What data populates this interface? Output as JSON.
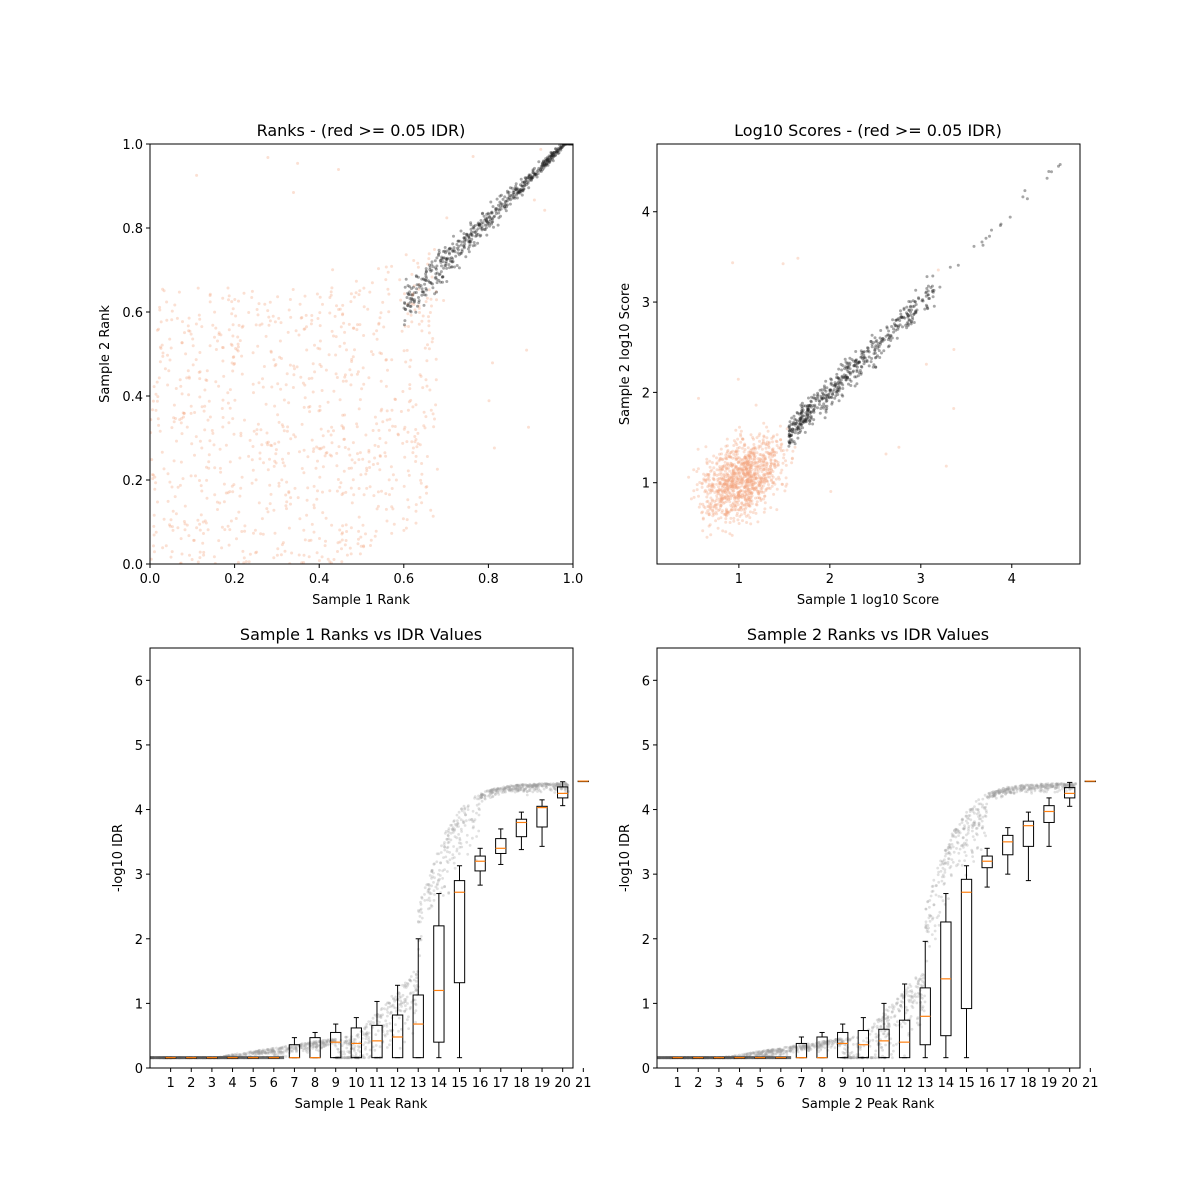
{
  "colors": {
    "pass": "#222222",
    "fail": "#f4a582",
    "median": "#ff7f0e",
    "box": "#000000",
    "cloud": "#9a9a9a"
  },
  "chart_data": [
    {
      "id": "ranks",
      "type": "scatter",
      "title": "Ranks - (red >= 0.05 IDR)",
      "xlabel": "Sample 1 Rank",
      "ylabel": "Sample 2 Rank",
      "xlim": [
        0.0,
        1.0
      ],
      "ylim": [
        0.0,
        1.0
      ],
      "xticks": [
        "0.0",
        "0.2",
        "0.4",
        "0.6",
        "0.8",
        "1.0"
      ],
      "yticks": [
        "0.0",
        "0.2",
        "0.4",
        "0.6",
        "0.8",
        "1.0"
      ],
      "grid": false,
      "series": [
        {
          "group": "idr < 0.05",
          "points": [
            [
              0.62,
              0.62
            ],
            [
              0.65,
              0.66
            ],
            [
              0.68,
              0.68
            ],
            [
              0.7,
              0.72
            ],
            [
              0.73,
              0.7
            ],
            [
              0.75,
              0.75
            ],
            [
              0.78,
              0.76
            ],
            [
              0.8,
              0.8
            ],
            [
              0.82,
              0.78
            ],
            [
              0.84,
              0.84
            ],
            [
              0.86,
              0.82
            ],
            [
              0.88,
              0.88
            ],
            [
              0.9,
              0.86
            ],
            [
              0.92,
              0.92
            ],
            [
              0.94,
              0.9
            ],
            [
              0.96,
              0.95
            ],
            [
              0.98,
              0.98
            ],
            [
              1.0,
              1.0
            ]
          ]
        },
        {
          "group": "idr >= 0.05",
          "points": [
            [
              0.0,
              0.5
            ],
            [
              0.05,
              0.3
            ],
            [
              0.1,
              0.2
            ],
            [
              0.15,
              0.4
            ],
            [
              0.2,
              0.1
            ],
            [
              0.25,
              0.45
            ],
            [
              0.3,
              0.25
            ],
            [
              0.35,
              0.55
            ],
            [
              0.4,
              0.15
            ],
            [
              0.45,
              0.35
            ],
            [
              0.5,
              0.6
            ],
            [
              0.55,
              0.3
            ],
            [
              0.6,
              0.7
            ],
            [
              0.62,
              0.45
            ],
            [
              0.65,
              0.65
            ],
            [
              0.3,
              0.0
            ],
            [
              0.05,
              0.65
            ],
            [
              0.5,
              0.05
            ]
          ]
        }
      ]
    },
    {
      "id": "scores",
      "type": "scatter",
      "title": "Log10 Scores - (red >= 0.05 IDR)",
      "xlabel": "Sample 1 log10 Score",
      "ylabel": "Sample 2 log10 Score",
      "xlim": [
        0.1,
        4.75
      ],
      "ylim": [
        0.1,
        4.75
      ],
      "xticks": [
        "1",
        "2",
        "3",
        "4"
      ],
      "yticks": [
        "1",
        "2",
        "3",
        "4"
      ],
      "grid": false,
      "series": [
        {
          "group": "idr < 0.05",
          "points": [
            [
              1.6,
              1.5
            ],
            [
              1.8,
              1.7
            ],
            [
              2.0,
              1.9
            ],
            [
              2.2,
              2.2
            ],
            [
              2.4,
              2.4
            ],
            [
              2.5,
              2.5
            ],
            [
              2.6,
              2.6
            ],
            [
              2.7,
              2.7
            ],
            [
              2.8,
              2.8
            ],
            [
              3.0,
              3.0
            ],
            [
              3.2,
              3.2
            ],
            [
              3.5,
              3.5
            ],
            [
              3.8,
              3.8
            ],
            [
              4.2,
              4.2
            ],
            [
              4.55,
              4.58
            ]
          ]
        },
        {
          "group": "idr >= 0.05",
          "points": [
            [
              0.5,
              0.6
            ],
            [
              0.7,
              1.0
            ],
            [
              0.8,
              0.8
            ],
            [
              0.9,
              1.2
            ],
            [
              1.0,
              1.0
            ],
            [
              1.1,
              0.7
            ],
            [
              1.2,
              1.3
            ],
            [
              1.3,
              0.9
            ],
            [
              1.4,
              1.5
            ],
            [
              1.5,
              1.2
            ],
            [
              1.6,
              1.7
            ],
            [
              1.7,
              1.4
            ],
            [
              0.4,
              1.2
            ],
            [
              1.0,
              0.4
            ],
            [
              1.8,
              1.8
            ]
          ]
        }
      ]
    },
    {
      "id": "s1idr",
      "type": "box",
      "title": "Sample 1 Ranks vs IDR Values",
      "xlabel": "Sample 1 Peak Rank",
      "ylabel": "-log10 IDR",
      "ylim": [
        0,
        6.5
      ],
      "yticks": [
        "0",
        "1",
        "2",
        "3",
        "4",
        "5",
        "6"
      ],
      "categories": [
        "1",
        "2",
        "3",
        "4",
        "5",
        "6",
        "7",
        "8",
        "9",
        "10",
        "11",
        "12",
        "13",
        "14",
        "15",
        "16",
        "17",
        "18",
        "19",
        "20",
        "21"
      ],
      "boxes": [
        [
          0.16,
          0.16,
          0.16,
          0.16,
          0.16
        ],
        [
          0.16,
          0.16,
          0.16,
          0.16,
          0.16
        ],
        [
          0.16,
          0.16,
          0.16,
          0.16,
          0.16
        ],
        [
          0.16,
          0.16,
          0.16,
          0.16,
          0.16
        ],
        [
          0.16,
          0.16,
          0.16,
          0.16,
          0.16
        ],
        [
          0.16,
          0.16,
          0.16,
          0.16,
          0.16
        ],
        [
          0.16,
          0.16,
          0.16,
          0.36,
          0.47
        ],
        [
          0.16,
          0.16,
          0.16,
          0.47,
          0.55
        ],
        [
          0.16,
          0.16,
          0.4,
          0.55,
          0.68
        ],
        [
          0.16,
          0.16,
          0.38,
          0.62,
          0.78
        ],
        [
          0.16,
          0.16,
          0.42,
          0.66,
          1.03
        ],
        [
          0.16,
          0.16,
          0.48,
          0.82,
          1.28
        ],
        [
          0.16,
          0.16,
          0.68,
          1.13,
          2.0
        ],
        [
          0.16,
          0.4,
          1.2,
          2.2,
          2.7
        ],
        [
          0.16,
          1.32,
          2.72,
          2.9,
          3.13
        ],
        [
          2.83,
          3.05,
          3.2,
          3.28,
          3.4
        ],
        [
          3.15,
          3.32,
          3.4,
          3.55,
          3.7
        ],
        [
          3.38,
          3.58,
          3.8,
          3.85,
          3.96
        ],
        [
          3.43,
          3.73,
          4.03,
          4.05,
          4.15
        ],
        [
          4.06,
          4.18,
          4.25,
          4.35,
          4.43
        ],
        [
          4.44,
          4.44,
          4.44,
          4.44,
          4.44
        ]
      ]
    },
    {
      "id": "s2idr",
      "type": "box",
      "title": "Sample 2 Ranks vs IDR Values",
      "xlabel": "Sample 2 Peak Rank",
      "ylabel": "-log10 IDR",
      "ylim": [
        0,
        6.5
      ],
      "yticks": [
        "0",
        "1",
        "2",
        "3",
        "4",
        "5",
        "6"
      ],
      "categories": [
        "1",
        "2",
        "3",
        "4",
        "5",
        "6",
        "7",
        "8",
        "9",
        "10",
        "11",
        "12",
        "13",
        "14",
        "15",
        "16",
        "17",
        "18",
        "19",
        "20",
        "21"
      ],
      "boxes": [
        [
          0.16,
          0.16,
          0.16,
          0.16,
          0.16
        ],
        [
          0.16,
          0.16,
          0.16,
          0.16,
          0.16
        ],
        [
          0.16,
          0.16,
          0.16,
          0.16,
          0.16
        ],
        [
          0.16,
          0.16,
          0.16,
          0.16,
          0.16
        ],
        [
          0.16,
          0.16,
          0.16,
          0.16,
          0.16
        ],
        [
          0.16,
          0.16,
          0.16,
          0.16,
          0.16
        ],
        [
          0.16,
          0.16,
          0.16,
          0.38,
          0.48
        ],
        [
          0.16,
          0.16,
          0.16,
          0.48,
          0.55
        ],
        [
          0.16,
          0.16,
          0.38,
          0.55,
          0.68
        ],
        [
          0.16,
          0.16,
          0.36,
          0.58,
          0.78
        ],
        [
          0.16,
          0.16,
          0.42,
          0.6,
          1.0
        ],
        [
          0.16,
          0.16,
          0.4,
          0.74,
          1.3
        ],
        [
          0.16,
          0.36,
          0.8,
          1.24,
          1.96
        ],
        [
          0.16,
          0.5,
          1.38,
          2.26,
          2.7
        ],
        [
          0.16,
          0.92,
          2.72,
          2.92,
          3.13
        ],
        [
          2.8,
          3.1,
          3.2,
          3.28,
          3.4
        ],
        [
          3.0,
          3.3,
          3.5,
          3.6,
          3.72
        ],
        [
          2.9,
          3.43,
          3.75,
          3.82,
          3.96
        ],
        [
          3.43,
          3.8,
          3.97,
          4.06,
          4.18
        ],
        [
          4.05,
          4.18,
          4.25,
          4.34,
          4.42
        ],
        [
          4.44,
          4.44,
          4.44,
          4.44,
          4.44
        ]
      ]
    }
  ]
}
